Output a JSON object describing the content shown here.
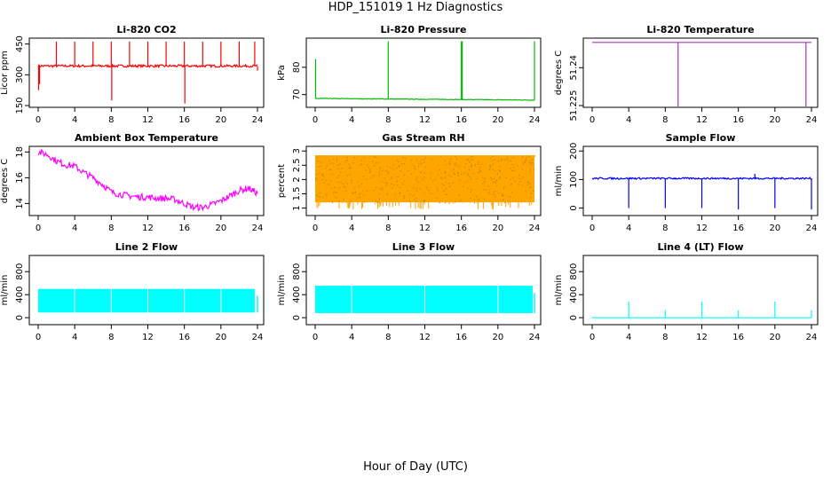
{
  "figure": {
    "title": "HDP_151019  1 Hz Diagnostics",
    "xlabel": "Hour of Day (UTC)"
  },
  "chart_data": [
    {
      "type": "line",
      "title": "Li-820 CO2",
      "ylabel": "Licor ppm",
      "color": "#ff0000",
      "xlim": [
        0,
        24
      ],
      "ylim": [
        150,
        470
      ],
      "xticks": [
        0,
        4,
        8,
        12,
        16,
        20,
        24
      ],
      "yticks": [
        150,
        300,
        450
      ],
      "baseline": {
        "kind": "flat",
        "level": 343,
        "noise": 6
      },
      "spikes": [
        {
          "x": 0.05,
          "y": 225
        },
        {
          "x": 0.15,
          "y": 255
        },
        {
          "x": 2.0,
          "y": 462
        },
        {
          "x": 4.0,
          "y": 462
        },
        {
          "x": 6.0,
          "y": 462
        },
        {
          "x": 8.0,
          "y": 462
        },
        {
          "x": 8.05,
          "y": 175
        },
        {
          "x": 10.0,
          "y": 462
        },
        {
          "x": 12.0,
          "y": 462
        },
        {
          "x": 14.0,
          "y": 462
        },
        {
          "x": 16.0,
          "y": 462
        },
        {
          "x": 16.05,
          "y": 160
        },
        {
          "x": 18.0,
          "y": 462
        },
        {
          "x": 20.0,
          "y": 462
        },
        {
          "x": 22.0,
          "y": 462
        },
        {
          "x": 23.7,
          "y": 462
        },
        {
          "x": 24.0,
          "y": 320
        }
      ]
    },
    {
      "type": "line",
      "title": "Li-820 Pressure",
      "ylabel": "kPa",
      "color": "#00bb00",
      "xlim": [
        0,
        24
      ],
      "ylim": [
        66,
        90
      ],
      "xticks": [
        0,
        4,
        8,
        12,
        16,
        20,
        24
      ],
      "yticks": [
        70,
        80
      ],
      "baseline": {
        "kind": "points",
        "x": [
          0,
          8,
          16,
          24
        ],
        "y": [
          68.6,
          68.4,
          68.2,
          68.0
        ],
        "noise": 0.1
      },
      "spikes": [
        {
          "x": 0.05,
          "y": 83
        },
        {
          "x": 8.0,
          "y": 89.5
        },
        {
          "x": 16.0,
          "y": 89.5
        },
        {
          "x": 16.1,
          "y": 89.5
        },
        {
          "x": 24.0,
          "y": 89.5
        }
      ]
    },
    {
      "type": "line",
      "title": "Li-820 Temperature",
      "ylabel": "degrees C",
      "color": "#b030c8",
      "xlim": [
        0,
        24
      ],
      "ylim": [
        51.225,
        51.251
      ],
      "xticks": [
        0,
        4,
        8,
        12,
        16,
        20,
        24
      ],
      "yticks": [
        51.225,
        51.24
      ],
      "baseline": {
        "kind": "flat",
        "level": 51.25,
        "noise": 0
      },
      "spikes": [
        {
          "x": 9.4,
          "y": 51.22
        },
        {
          "x": 23.4,
          "y": 51.22
        }
      ]
    },
    {
      "type": "line",
      "title": "Ambient Box Temperature",
      "ylabel": "degrees C",
      "color": "#ff00ff",
      "xlim": [
        0,
        24
      ],
      "ylim": [
        13.2,
        18.3
      ],
      "xticks": [
        0,
        4,
        8,
        12,
        16,
        20,
        24
      ],
      "yticks": [
        14,
        16,
        18
      ],
      "baseline": {
        "kind": "points",
        "x": [
          0,
          1,
          2,
          3,
          4,
          5,
          6,
          7,
          8,
          9,
          10,
          11,
          12,
          13,
          14,
          15,
          16,
          17,
          18,
          19,
          20,
          21,
          22,
          23,
          24
        ],
        "y": [
          18.0,
          17.8,
          17.3,
          17.0,
          16.9,
          16.4,
          16.0,
          15.5,
          14.9,
          14.7,
          14.6,
          14.5,
          14.5,
          14.4,
          14.4,
          14.3,
          14.0,
          13.7,
          13.7,
          13.9,
          14.2,
          14.6,
          15.0,
          15.2,
          14.8
        ],
        "noise": 0.25
      },
      "spikes": []
    },
    {
      "type": "area",
      "title": "Gas Stream RH",
      "ylabel": "percent",
      "color": "#ffa500",
      "accent": "#b8860b",
      "xlim": [
        0,
        24
      ],
      "ylim": [
        0.8,
        3.1
      ],
      "xticks": [
        0,
        4,
        8,
        12,
        16,
        20,
        24
      ],
      "yticks": [
        1.0,
        1.5,
        2.0,
        2.5,
        3.0
      ],
      "band": {
        "low": 1.2,
        "high": 2.85
      },
      "dips_to": 0.95
    },
    {
      "type": "line",
      "title": "Sample Flow",
      "ylabel": "ml/min",
      "color": "#0000ee",
      "xlim": [
        0,
        24
      ],
      "ylim": [
        -20,
        210
      ],
      "xticks": [
        0,
        4,
        8,
        12,
        16,
        20,
        24
      ],
      "yticks": [
        0,
        100,
        200
      ],
      "baseline": {
        "kind": "flat",
        "level": 104,
        "noise": 3
      },
      "spikes": [
        {
          "x": 4.0,
          "y": 0
        },
        {
          "x": 8.0,
          "y": 0
        },
        {
          "x": 12.0,
          "y": 0
        },
        {
          "x": 16.0,
          "y": -5
        },
        {
          "x": 20.0,
          "y": 0
        },
        {
          "x": 24.0,
          "y": -5
        },
        {
          "x": 17.8,
          "y": 120
        }
      ]
    },
    {
      "type": "area",
      "title": "Line 2 Flow",
      "ylabel": "ml/min",
      "color": "#00ffff",
      "xlim": [
        0,
        24
      ],
      "ylim": [
        -90,
        1050
      ],
      "xticks": [
        0,
        4,
        8,
        12,
        16,
        20,
        24
      ],
      "yticks": [
        0,
        400,
        800
      ],
      "band": {
        "low": 90,
        "high": 500,
        "x_end": 23.7
      },
      "gaps": [
        4.0,
        8.0,
        12.0,
        16.0,
        20.0
      ],
      "tail": {
        "x": 24.0,
        "y": 380
      }
    },
    {
      "type": "area",
      "title": "Line 3 Flow",
      "ylabel": "ml/min",
      "color": "#00ffff",
      "xlim": [
        0,
        24
      ],
      "ylim": [
        -90,
        1050
      ],
      "xticks": [
        0,
        4,
        8,
        12,
        16,
        20,
        24
      ],
      "yticks": [
        0,
        400,
        800
      ],
      "band": {
        "low": 80,
        "high": 555,
        "x_end": 23.8
      },
      "gaps": [
        4.0,
        12.0,
        20.0
      ],
      "tail": {
        "x": 24.0,
        "y": 430
      }
    },
    {
      "type": "line",
      "title": "Line 4 (LT) Flow",
      "ylabel": "ml/min",
      "color": "#00ffff",
      "xlim": [
        0,
        24
      ],
      "ylim": [
        -90,
        1050
      ],
      "xticks": [
        0,
        4,
        8,
        12,
        16,
        20,
        24
      ],
      "yticks": [
        0,
        400,
        800
      ],
      "baseline": {
        "kind": "flat",
        "level": 0,
        "noise": 0
      },
      "spikes": [
        {
          "x": 4.0,
          "y": 280
        },
        {
          "x": 8.0,
          "y": 130
        },
        {
          "x": 12.0,
          "y": 280
        },
        {
          "x": 16.0,
          "y": 130
        },
        {
          "x": 20.0,
          "y": 280
        },
        {
          "x": 24.0,
          "y": 130
        }
      ]
    }
  ]
}
